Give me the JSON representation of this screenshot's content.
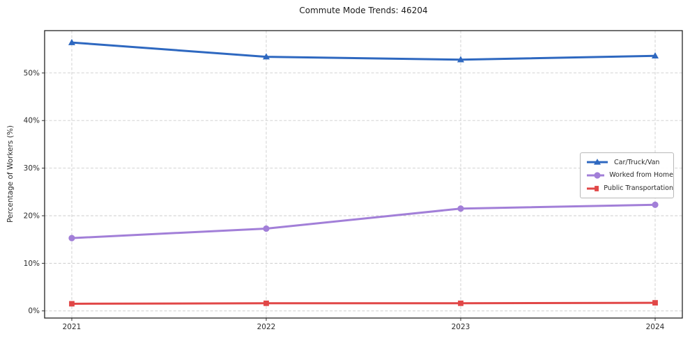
{
  "figure": {
    "background": "#ffffff",
    "spine_color": "#242424",
    "grid_color": "#cdcdcd",
    "tick_label_color": "#2b2b2b"
  },
  "chart_data": {
    "type": "line",
    "title": "Commute Mode Trends: 46204",
    "xlabel": "",
    "ylabel": "Percentage of Workers (%)",
    "x_tick_labels": [
      "2021",
      "2022",
      "2023",
      "2024"
    ],
    "y_ticks": [
      0,
      10,
      20,
      30,
      40,
      50
    ],
    "y_tick_labels": [
      "0%",
      "10%",
      "20%",
      "30%",
      "40%",
      "50%"
    ],
    "ylim": [
      -1.5,
      58.9
    ],
    "grid": "dashed-both-axes",
    "legend_position": "center-right-inside",
    "series": [
      {
        "name": "Car/Truck/Van",
        "color": "#2e68c0",
        "marker": "triangle",
        "values": [
          56.4,
          53.4,
          52.8,
          53.6
        ]
      },
      {
        "name": "Worked from Home",
        "color": "#a27fd8",
        "marker": "circle",
        "values": [
          15.3,
          17.3,
          21.5,
          22.3
        ]
      },
      {
        "name": "Public Transportation",
        "color": "#e14747",
        "marker": "square",
        "values": [
          1.5,
          1.6,
          1.6,
          1.7
        ]
      }
    ]
  }
}
